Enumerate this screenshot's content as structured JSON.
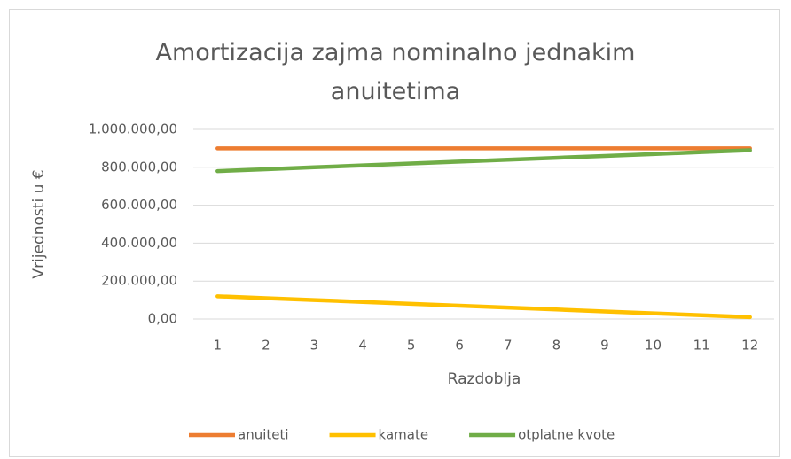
{
  "chart_data": {
    "type": "line",
    "title": "Amortizacija zajma nominalno jednakim anuitetima",
    "x_label": "Razdoblja",
    "y_label": "Vrijednosti u €",
    "categories": [
      "1",
      "2",
      "3",
      "4",
      "5",
      "6",
      "7",
      "8",
      "9",
      "10",
      "11",
      "12"
    ],
    "series": [
      {
        "name": "anuiteti",
        "color": "#ed7d31",
        "values": [
          900000,
          900000,
          900000,
          900000,
          900000,
          900000,
          900000,
          900000,
          900000,
          900000,
          900000,
          900000
        ]
      },
      {
        "name": "kamate",
        "color": "#ffc000",
        "values": [
          120000,
          110000,
          100000,
          90000,
          80000,
          70000,
          60000,
          50000,
          40000,
          30000,
          20000,
          10000
        ]
      },
      {
        "name": "otplatne kvote",
        "color": "#70ad47",
        "values": [
          780000,
          790000,
          800000,
          810000,
          820000,
          830000,
          840000,
          850000,
          860000,
          870000,
          880000,
          890000
        ]
      }
    ],
    "ylim": [
      0,
      1000000
    ],
    "yticks": [
      {
        "value": 0,
        "label": "0,00"
      },
      {
        "value": 200000,
        "label": "200.000,00"
      },
      {
        "value": 400000,
        "label": "400.000,00"
      },
      {
        "value": 600000,
        "label": "600.000,00"
      },
      {
        "value": 800000,
        "label": "800.000,00"
      },
      {
        "value": 1000000,
        "label": "1.000.000,00"
      }
    ],
    "grid": true,
    "legend": "bottom"
  }
}
